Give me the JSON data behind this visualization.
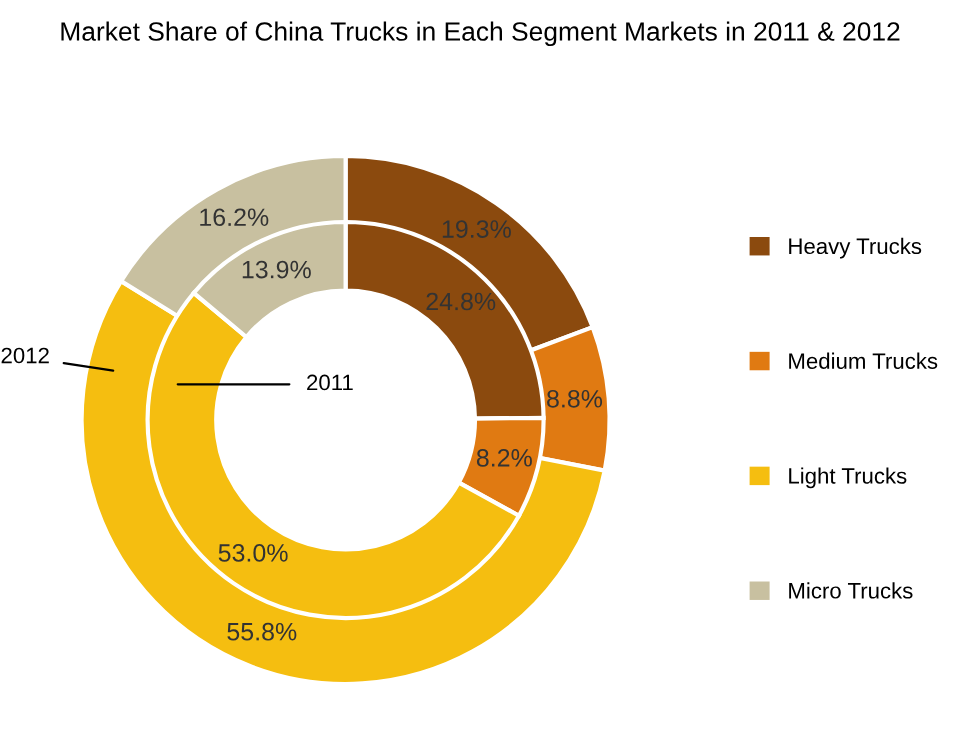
{
  "chart_data": {
    "type": "donut",
    "title": "Market Share of China Trucks in Each Segment Markets in 2011 & 2012",
    "categories": [
      "Heavy Trucks",
      "Medium Trucks",
      "Light Trucks",
      "Micro Trucks"
    ],
    "colors": [
      "#8b4a0e",
      "#e07a12",
      "#f5be10",
      "#c8c0a0"
    ],
    "series": [
      {
        "name": "2012",
        "values": [
          19.3,
          8.8,
          55.8,
          16.2
        ],
        "value_labels": [
          "19.3%",
          "8.8%",
          "55.8%",
          "16.2%"
        ]
      },
      {
        "name": "2011",
        "values": [
          24.8,
          8.2,
          53.0,
          13.9
        ],
        "value_labels": [
          "24.8%",
          "8.2%",
          "53.0%",
          "13.9%"
        ]
      }
    ],
    "legend": "right"
  }
}
